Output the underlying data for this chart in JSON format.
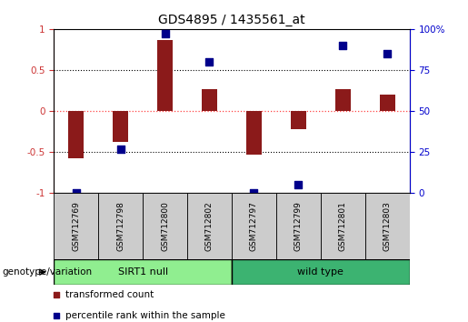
{
  "title": "GDS4895 / 1435561_at",
  "samples": [
    "GSM712769",
    "GSM712798",
    "GSM712800",
    "GSM712802",
    "GSM712797",
    "GSM712799",
    "GSM712801",
    "GSM712803"
  ],
  "transformed_count": [
    -0.58,
    -0.37,
    0.87,
    0.27,
    -0.53,
    -0.22,
    0.27,
    0.2
  ],
  "percentile_rank": [
    0.0,
    27.0,
    97.0,
    80.0,
    0.0,
    5.0,
    90.0,
    85.0
  ],
  "bar_color": "#8B1A1A",
  "dot_color": "#00008B",
  "ylim_left": [
    -1.0,
    1.0
  ],
  "ylim_right": [
    0,
    100
  ],
  "yticks_left": [
    -1,
    -0.5,
    0,
    0.5,
    1
  ],
  "ytick_labels_left": [
    "-1",
    "-0.5",
    "0",
    "0.5",
    "1"
  ],
  "yticks_right": [
    0,
    25,
    50,
    75,
    100
  ],
  "ytick_labels_right": [
    "0",
    "25",
    "50",
    "75",
    "100%"
  ],
  "groups": [
    {
      "label": "SIRT1 null",
      "start": 0,
      "end": 4,
      "color": "#90EE90"
    },
    {
      "label": "wild type",
      "start": 4,
      "end": 8,
      "color": "#3CB371"
    }
  ],
  "group_label": "genotype/variation",
  "legend_items": [
    {
      "color": "#8B1A1A",
      "label": "transformed count"
    },
    {
      "color": "#00008B",
      "label": "percentile rank within the sample"
    }
  ],
  "hline_zero_color": "#FF4444",
  "hline_dotted_color": "#000000",
  "background_color": "#ffffff",
  "plot_bg_color": "#ffffff",
  "bar_width": 0.35,
  "dot_size": 28,
  "title_fontsize": 10,
  "tick_fontsize": 7.5,
  "sample_fontsize": 6.5,
  "legend_fontsize": 7.5
}
